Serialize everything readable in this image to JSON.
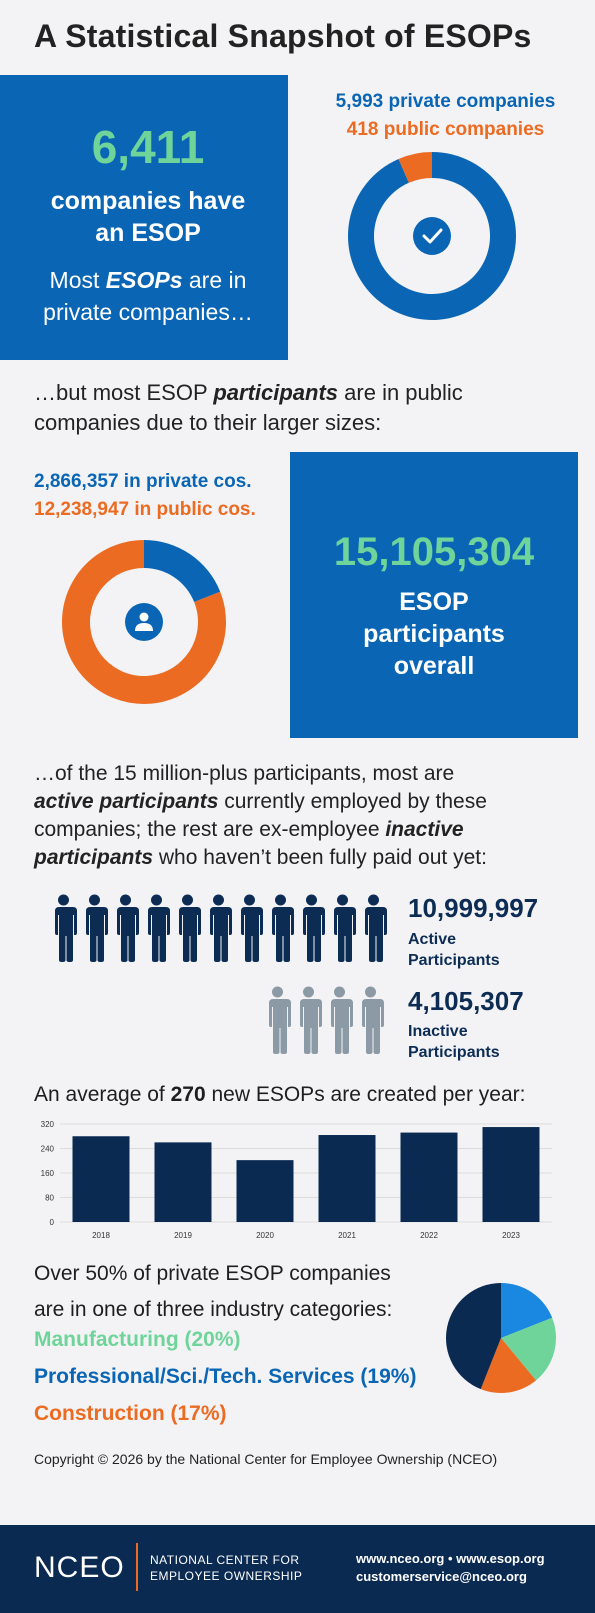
{
  "title": "A Statistical Snapshot of ESOPs",
  "section1": {
    "big_number": "6,411",
    "line1": "companies have",
    "line2": "an ESOP",
    "most_prefix": "Most ",
    "most_em": "ESOPs",
    "most_suffix": " are in",
    "line4": "private companies…",
    "legend_private": "5,993 private companies",
    "legend_public": "418 public companies",
    "donut": {
      "private": 5993,
      "public": 418
    }
  },
  "section2_intro": {
    "prefix": "…but most ESOP ",
    "em": "participants",
    "suffix": " are in public",
    "line2": "companies due to their larger sizes:"
  },
  "section2": {
    "legend_private": "2,866,357 in private cos.",
    "legend_public": "12,238,947 in public cos.",
    "big_number": "15,105,304",
    "line1": "ESOP",
    "line2": "participants",
    "line3": "overall",
    "donut": {
      "private": 2866357,
      "public": 12238947
    }
  },
  "section3_intro": {
    "l1": "…of the 15 million-plus participants, most are",
    "l2_em": "active participants",
    "l2_rest": " currently employed by these",
    "l3_pre": "companies; the rest are ex-employee ",
    "l3_em": "inactive",
    "l4_em": "participants",
    "l4_rest": " who haven’t been fully paid out yet:"
  },
  "active": {
    "number": "10,999,997",
    "label1": "Active",
    "label2": "Participants",
    "icons": 11
  },
  "inactive": {
    "number": "4,105,307",
    "label1": "Inactive",
    "label2": "Participants",
    "icons": 4
  },
  "bar_intro": {
    "prefix": "An average of ",
    "bold": "270",
    "suffix": " new ESOPs are created per year:"
  },
  "chart_data": [
    {
      "type": "bar",
      "categories": [
        "2018",
        "2019",
        "2020",
        "2021",
        "2022",
        "2023"
      ],
      "values": [
        280,
        260,
        202,
        284,
        292,
        310
      ],
      "yticks": [
        "0",
        "80",
        "160",
        "240",
        "320"
      ],
      "ylim": [
        0,
        320
      ],
      "color": "#0a2a52"
    },
    {
      "type": "pie",
      "slices": [
        {
          "label": "Professional/Sci./Tech. Services (19%)",
          "value": 19,
          "color": "#1a87e0"
        },
        {
          "label": "Manufacturing (20%)",
          "value": 20,
          "color": "#6ed49a"
        },
        {
          "label": "Construction (17%)",
          "value": 17,
          "color": "#ec6b22"
        },
        {
          "label": "Other",
          "value": 44,
          "color": "#0a2a52"
        }
      ]
    }
  ],
  "industry": {
    "l1": "Over 50% of private ESOP companies",
    "l2": "are in one of three industry categories:",
    "manufacturing": "Manufacturing (20%)",
    "professional": "Professional/Sci./Tech. Services (19%)",
    "construction": "Construction (17%)"
  },
  "copyright": "Copyright © 2026 by the National Center for Employee Ownership (NCEO)",
  "footer": {
    "logo": "NCEO",
    "org1": "NATIONAL CENTER FOR",
    "org2": "EMPLOYEE OWNERSHIP",
    "site1": "www.nceo.org",
    "bullet": "•",
    "site2": "www.esop.org",
    "email": "customerservice@nceo.org"
  },
  "colors": {
    "blue": "#0a66b5",
    "orange": "#ec6b22",
    "green": "#6ed49a",
    "navy": "#0a2a52"
  }
}
